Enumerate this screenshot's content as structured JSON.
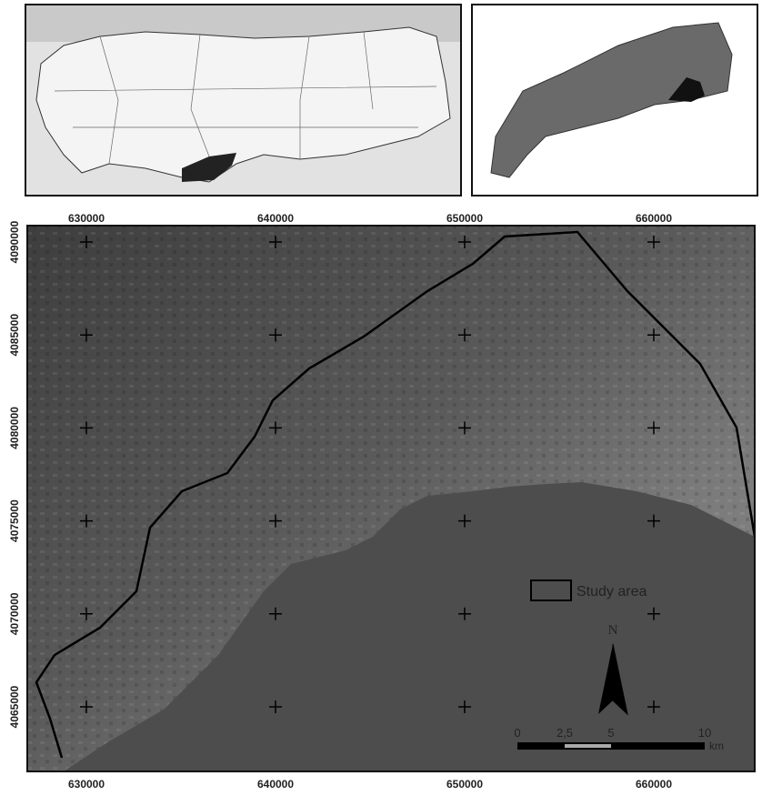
{
  "map": {
    "x_axis_labels": [
      "630000",
      "640000",
      "650000",
      "660000"
    ],
    "y_axis_labels": [
      "4090000",
      "4085000",
      "4080000",
      "4075000",
      "4070000",
      "4065000"
    ],
    "legend": {
      "label": "Study area"
    },
    "north_label": "N",
    "scale_bar": {
      "labels": [
        "0",
        "2,5",
        "5",
        "10"
      ],
      "unit": "km"
    }
  }
}
